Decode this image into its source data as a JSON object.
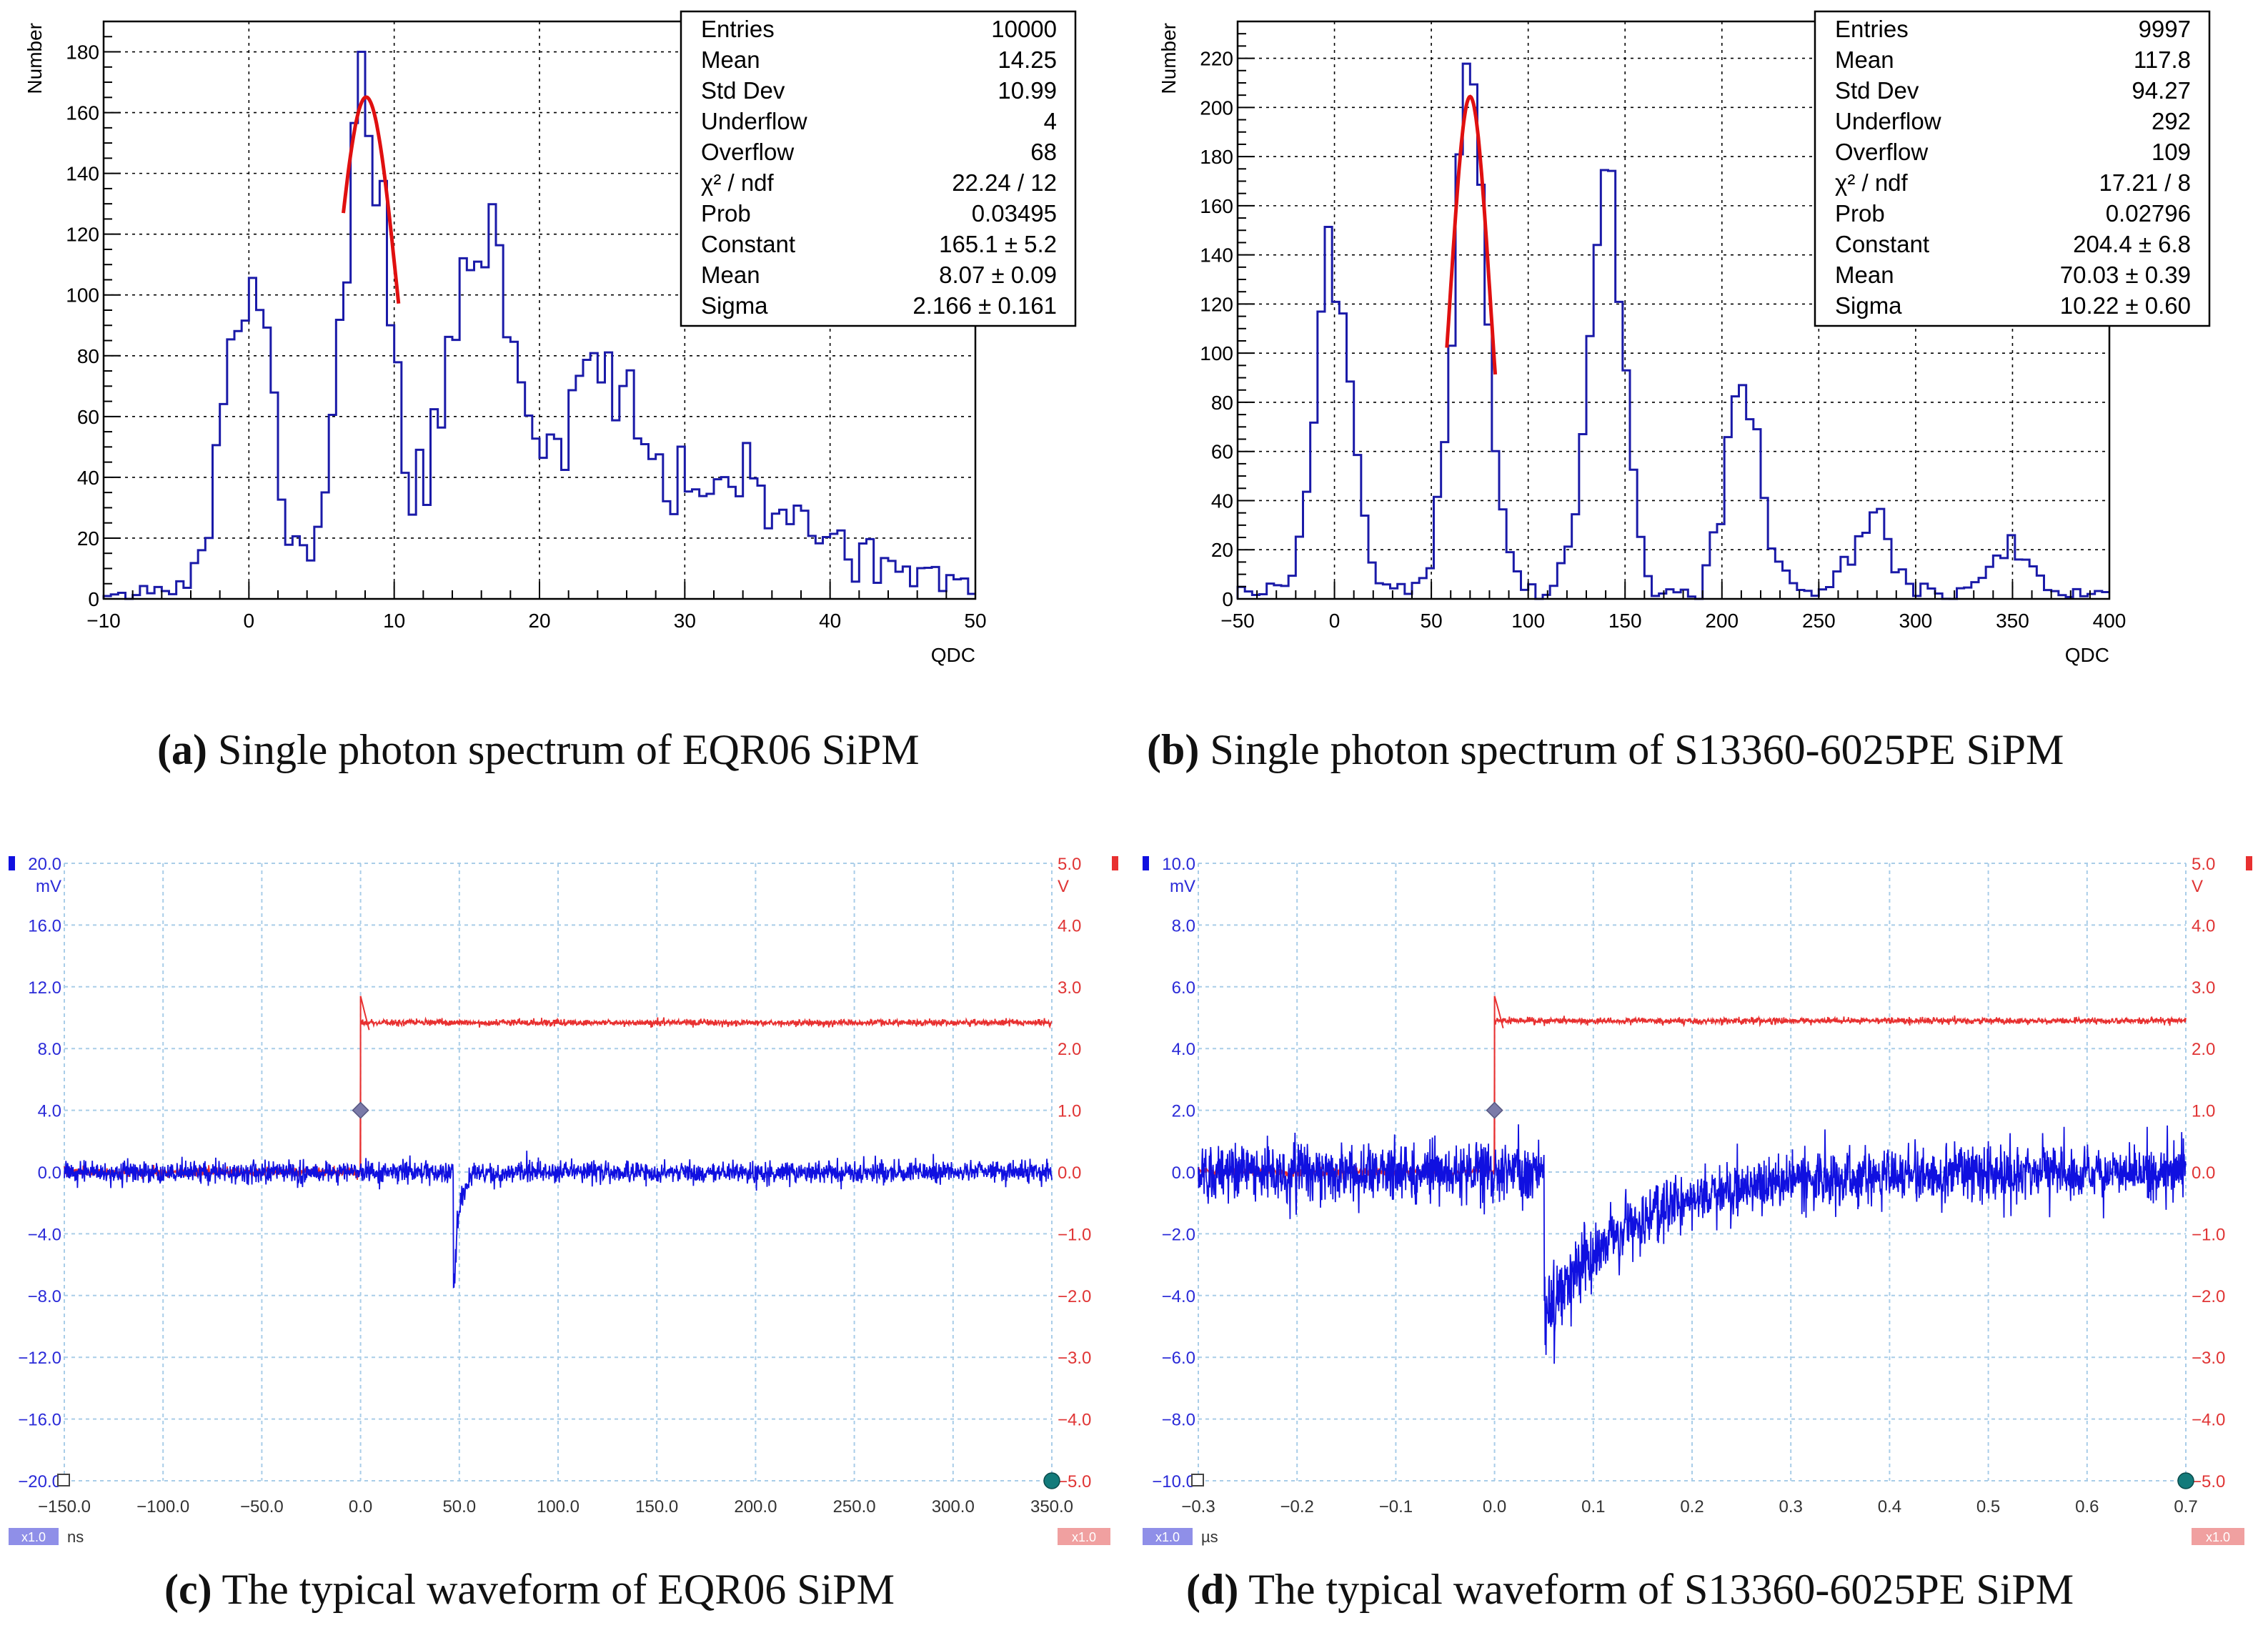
{
  "chart_data": [
    {
      "panel": "a",
      "type": "histogram",
      "ylabel": "Number",
      "xlabel": "QDC",
      "xlim": [
        -10,
        50
      ],
      "ylim": [
        0,
        190
      ],
      "xticks": [
        "−10",
        "0",
        "10",
        "20",
        "30",
        "40",
        "50"
      ],
      "xtick_values": [
        -10,
        0,
        10,
        20,
        30,
        40,
        50
      ],
      "yticks": [
        "0",
        "20",
        "40",
        "60",
        "80",
        "100",
        "120",
        "140",
        "160",
        "180"
      ],
      "ytick_values": [
        0,
        20,
        40,
        60,
        80,
        100,
        120,
        140,
        160,
        180
      ],
      "grid": true,
      "histogram_color": "#1a1aa8",
      "fit_color": "#e01010",
      "peaks": [
        {
          "mu": 0,
          "sigma": 1.6,
          "amp": 100
        },
        {
          "mu": 8,
          "sigma": 1.6,
          "amp": 160
        },
        {
          "mu": 16,
          "sigma": 2.3,
          "amp": 120
        },
        {
          "mu": 24,
          "sigma": 2.8,
          "amp": 70
        },
        {
          "mu": 32.5,
          "sigma": 3.2,
          "amp": 35
        },
        {
          "mu": 40.5,
          "sigma": 3.5,
          "amp": 16
        }
      ],
      "fit": {
        "constant": 165.1,
        "mean": 8.07,
        "sigma": 2.166,
        "range": [
          6.5,
          10.3
        ]
      },
      "stats": [
        {
          "label": "Entries",
          "value": "10000"
        },
        {
          "label": "Mean",
          "value": "14.25"
        },
        {
          "label": "Std Dev",
          "value": "10.99"
        },
        {
          "label": "Underflow",
          "value": "4"
        },
        {
          "label": "Overflow",
          "value": "68"
        },
        {
          "label": "χ² / ndf",
          "value": "22.24 / 12"
        },
        {
          "label": "Prob",
          "value": "0.03495"
        },
        {
          "label": "Constant",
          "value": "165.1 ± 5.2"
        },
        {
          "label": "Mean",
          "value": "8.07 ± 0.09"
        },
        {
          "label": "Sigma",
          "value": "2.166 ± 0.161"
        }
      ]
    },
    {
      "panel": "b",
      "type": "histogram",
      "ylabel": "Number",
      "xlabel": "QDC",
      "xlim": [
        -50,
        400
      ],
      "ylim": [
        0,
        235
      ],
      "xticks": [
        "−50",
        "0",
        "50",
        "100",
        "150",
        "200",
        "250",
        "300",
        "350",
        "400"
      ],
      "xtick_values": [
        -50,
        0,
        50,
        100,
        150,
        200,
        250,
        300,
        350,
        400
      ],
      "yticks": [
        "0",
        "20",
        "40",
        "60",
        "80",
        "100",
        "120",
        "140",
        "160",
        "180",
        "200",
        "220"
      ],
      "ytick_values": [
        0,
        20,
        40,
        60,
        80,
        100,
        120,
        140,
        160,
        180,
        200,
        220
      ],
      "grid": true,
      "histogram_color": "#1a1aa8",
      "fit_color": "#e01010",
      "peaks": [
        {
          "mu": 0,
          "sigma": 9,
          "amp": 140
        },
        {
          "mu": 70,
          "sigma": 9,
          "amp": 195
        },
        {
          "mu": 140,
          "sigma": 9,
          "amp": 165
        },
        {
          "mu": 210,
          "sigma": 9.5,
          "amp": 85
        },
        {
          "mu": 278,
          "sigma": 10,
          "amp": 28
        },
        {
          "mu": 348,
          "sigma": 10,
          "amp": 14
        }
      ],
      "fit": {
        "constant": 204.4,
        "mean": 70.03,
        "sigma": 10.22,
        "range": [
          58,
          83
        ]
      },
      "stats": [
        {
          "label": "Entries",
          "value": "9997"
        },
        {
          "label": "Mean",
          "value": "117.8"
        },
        {
          "label": "Std Dev",
          "value": "94.27"
        },
        {
          "label": "Underflow",
          "value": "292"
        },
        {
          "label": "Overflow",
          "value": "109"
        },
        {
          "label": "χ² / ndf",
          "value": "17.21 / 8"
        },
        {
          "label": "Prob",
          "value": "0.02796"
        },
        {
          "label": "Constant",
          "value": "204.4 ± 6.8"
        },
        {
          "label": "Mean",
          "value": "70.03 ± 0.39"
        },
        {
          "label": "Sigma",
          "value": "10.22 ± 0.60"
        }
      ]
    },
    {
      "panel": "c",
      "type": "line",
      "xlim": [
        -150,
        350
      ],
      "ylim": [
        -20,
        20
      ],
      "ylim_right": [
        -5,
        5
      ],
      "xticks": [
        "−150.0",
        "−100.0",
        "−50.0",
        "0.0",
        "50.0",
        "100.0",
        "150.0",
        "200.0",
        "250.0",
        "300.0",
        "350.0"
      ],
      "xtick_values": [
        -150,
        -100,
        -50,
        0,
        50,
        100,
        150,
        200,
        250,
        300,
        350
      ],
      "yticks_left": [
        "−20.0",
        "−16.0",
        "−12.0",
        "−8.0",
        "−4.0",
        "0.0",
        "4.0",
        "8.0",
        "12.0",
        "16.0",
        "20.0"
      ],
      "ytick_left_values": [
        -20,
        -16,
        -12,
        -8,
        -4,
        0,
        4,
        8,
        12,
        16,
        20
      ],
      "yticks_right": [
        "−5.0",
        "−4.0",
        "−3.0",
        "−2.0",
        "−1.0",
        "0.0",
        "1.0",
        "2.0",
        "3.0",
        "4.0",
        "5.0"
      ],
      "ytick_right_values": [
        -5,
        -4,
        -3,
        -2,
        -1,
        0,
        1,
        2,
        3,
        4,
        5
      ],
      "left_unit": "mV",
      "right_unit": "V",
      "x_unit": "ns",
      "scale_badge": "x1.0",
      "grid": true,
      "signal_color": "#1010e0",
      "trigger_color": "#e83030",
      "trigger": {
        "time": 0,
        "level_before": 0.0,
        "level_after": 2.42,
        "spike": 2.85
      },
      "pulse": {
        "time": 47,
        "depth": -7.8,
        "decay": 3,
        "noise": 0.35
      },
      "marker": {
        "time": 0,
        "level": 4.0
      },
      "end_marker": {
        "time": 350,
        "level_right": -5.0
      }
    },
    {
      "panel": "d",
      "type": "line",
      "xlim": [
        -0.3,
        0.7
      ],
      "ylim": [
        -10,
        10
      ],
      "ylim_right": [
        -5,
        5
      ],
      "xticks": [
        "−0.3",
        "−0.2",
        "−0.1",
        "0.0",
        "0.1",
        "0.2",
        "0.3",
        "0.4",
        "0.5",
        "0.6",
        "0.7"
      ],
      "xtick_values": [
        -0.3,
        -0.2,
        -0.1,
        0,
        0.1,
        0.2,
        0.3,
        0.4,
        0.5,
        0.6,
        0.7
      ],
      "yticks_left": [
        "−10.0",
        "−8.0",
        "−6.0",
        "−4.0",
        "−2.0",
        "0.0",
        "2.0",
        "4.0",
        "6.0",
        "8.0",
        "10.0"
      ],
      "ytick_left_values": [
        -10,
        -8,
        -6,
        -4,
        -2,
        0,
        2,
        4,
        6,
        8,
        10
      ],
      "yticks_right": [
        "−5.0",
        "−4.0",
        "−3.0",
        "−2.0",
        "−1.0",
        "0.0",
        "1.0",
        "2.0",
        "3.0",
        "4.0",
        "5.0"
      ],
      "ytick_right_values": [
        -5,
        -4,
        -3,
        -2,
        -1,
        0,
        1,
        2,
        3,
        4,
        5
      ],
      "left_unit": "mV",
      "right_unit": "V",
      "x_unit": "µs",
      "scale_badge": "x1.0",
      "grid": true,
      "signal_color": "#1010e0",
      "trigger_color": "#e83030",
      "trigger": {
        "time": 0,
        "level_before": 0.0,
        "level_after": 2.45,
        "spike": 2.85
      },
      "pulse": {
        "time": 0.05,
        "depth": -4.6,
        "decay": 0.09,
        "noise": 0.45
      },
      "marker": {
        "time": 0,
        "level": 2.0
      },
      "end_marker": {
        "time": 0.7,
        "level_right": -5.0
      }
    }
  ],
  "captions": [
    {
      "tag": "(a)",
      "text": " Single photon spectrum of EQR06 SiPM"
    },
    {
      "tag": "(b)",
      "text": " Single photon spectrum of S13360-6025PE SiPM"
    },
    {
      "tag": "(c)",
      "text": " The typical waveform of EQR06 SiPM"
    },
    {
      "tag": "(d)",
      "text": " The typical waveform of S13360-6025PE SiPM"
    }
  ]
}
